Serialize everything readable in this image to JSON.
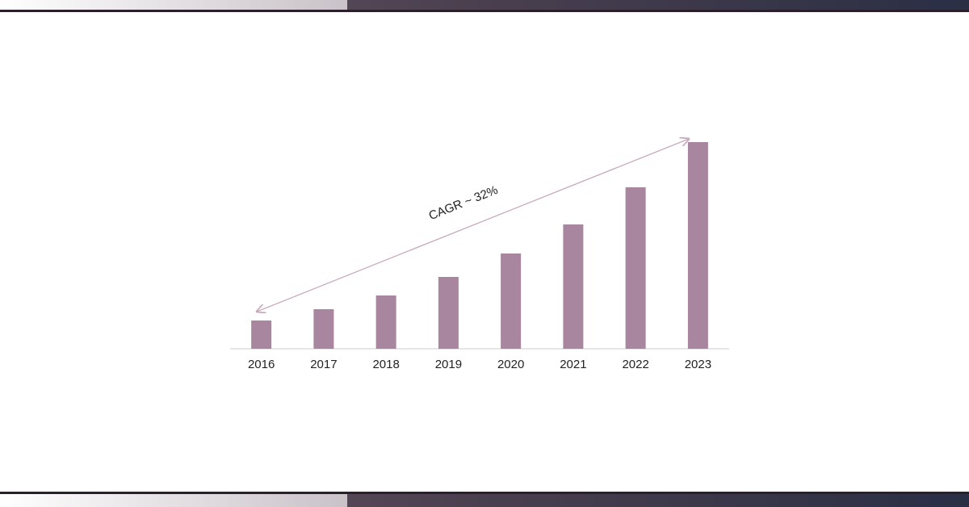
{
  "chart_data": {
    "type": "bar",
    "annotation": "CAGR ~ 32%",
    "categories": [
      "2016",
      "2017",
      "2018",
      "2019",
      "2020",
      "2021",
      "2022",
      "2023"
    ],
    "values": [
      35,
      49,
      66,
      89,
      118,
      154,
      200,
      256
    ],
    "color": "#a8869f",
    "ylim": [
      0,
      256
    ]
  }
}
